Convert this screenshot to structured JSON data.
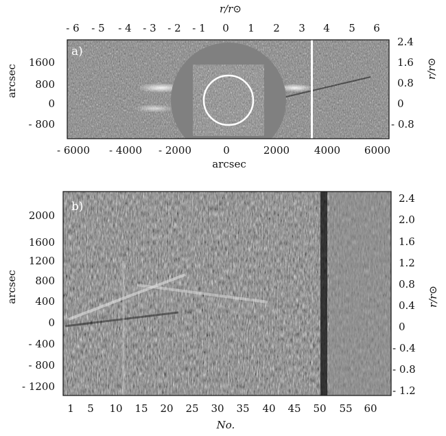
{
  "figure": {
    "panel_a": {
      "tag": "a)",
      "top_axis_label": "r/r⊙",
      "top_ticks": [
        "- 6",
        "- 5",
        "- 4",
        "- 3",
        "- 2",
        "- 1",
        "0",
        "1",
        "2",
        "3",
        "3",
        "4",
        "5",
        "6"
      ],
      "left_axis_label": "arcsec",
      "left_ticks": [
        "1600",
        "800",
        "0",
        "- 800"
      ],
      "right_axis_label": "r/r⊙",
      "right_ticks": [
        "2.4",
        "1.6",
        "0.8",
        "0",
        "- 0.8"
      ],
      "bottom_axis_label": "arcsec",
      "bottom_ticks": [
        "- 6000",
        "- 4000",
        "- 2000",
        "0",
        "2000",
        "4000",
        "6000"
      ]
    },
    "panel_b": {
      "tag": "b)",
      "left_axis_label": "arcsec",
      "left_ticks": [
        "2000",
        "1600",
        "1200",
        "800",
        "400",
        "0",
        "- 400",
        "- 800",
        "- 1200"
      ],
      "right_axis_label": "r/r⊙",
      "right_ticks": [
        "2.4",
        "2.0",
        "1.6",
        "1.2",
        "0.8",
        "0.4",
        "0",
        "- 0.4",
        "- 0.8",
        "- 1.2"
      ],
      "bottom_axis_label": "No.",
      "bottom_ticks": [
        "1",
        "5",
        "10",
        "15",
        "20",
        "25",
        "30",
        "35",
        "40",
        "45",
        "50",
        "55",
        "60"
      ]
    }
  },
  "colors": {
    "background": "#ffffff",
    "image_gray": "#7a7a7a",
    "occulter": "#808080",
    "ink": "#111111"
  }
}
